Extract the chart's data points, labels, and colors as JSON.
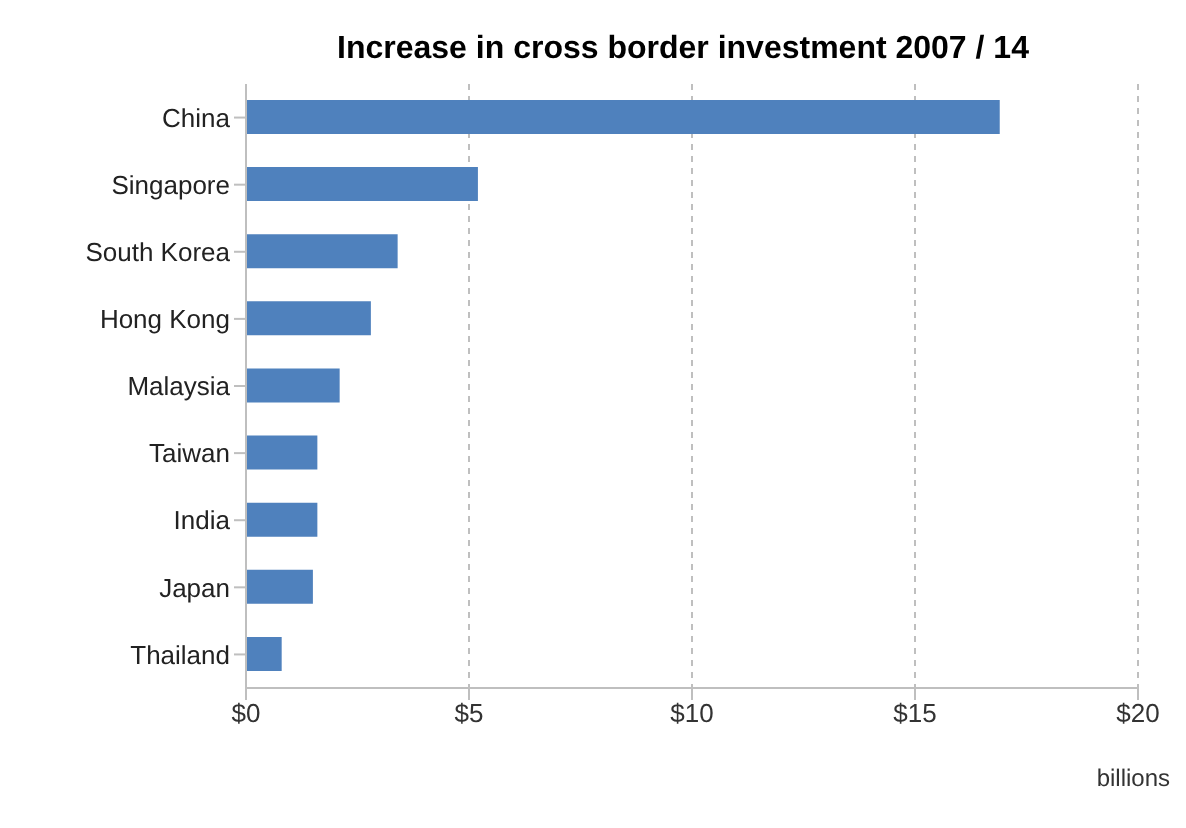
{
  "chart_data": {
    "type": "bar",
    "orientation": "horizontal",
    "title": "Increase in cross border investment 2007 / 14",
    "xlabel": "billions",
    "categories": [
      "China",
      "Singapore",
      "South Korea",
      "Hong Kong",
      "Malaysia",
      "Taiwan",
      "India",
      "Japan",
      "Thailand"
    ],
    "values": [
      16.9,
      5.2,
      3.4,
      2.8,
      2.1,
      1.6,
      1.6,
      1.5,
      0.8
    ],
    "color": "#4f81bd",
    "xlim": [
      0,
      20
    ],
    "xticks": [
      {
        "value": 0,
        "label": "$0"
      },
      {
        "value": 5,
        "label": "$5"
      },
      {
        "value": 10,
        "label": "$10"
      },
      {
        "value": 15,
        "label": "$15"
      },
      {
        "value": 20,
        "label": "$20"
      }
    ],
    "grid": "x"
  }
}
